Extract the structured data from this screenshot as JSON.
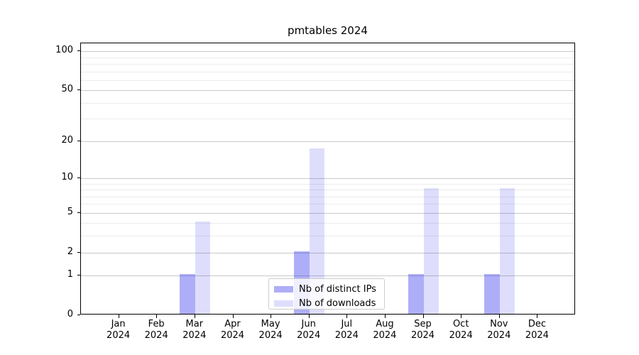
{
  "chart_data": {
    "type": "bar",
    "title": "pmtables 2024",
    "categories": [
      "Jan",
      "Feb",
      "Mar",
      "Apr",
      "May",
      "Jun",
      "Jul",
      "Aug",
      "Sep",
      "Oct",
      "Nov",
      "Dec"
    ],
    "year_label": "2024",
    "series": [
      {
        "name": "Nb of distinct IPs",
        "color": "rgba(10,10,235,0.33)",
        "values": [
          0,
          0,
          1,
          0,
          0,
          2,
          0,
          0,
          1,
          0,
          1,
          0
        ]
      },
      {
        "name": "Nb of downloads",
        "color": "rgba(10,10,235,0.135)",
        "values": [
          0,
          0,
          4,
          0,
          0,
          17,
          0,
          0,
          8,
          0,
          8,
          0
        ]
      }
    ],
    "yscale": "log1p",
    "yticks": [
      0,
      1,
      2,
      5,
      10,
      20,
      50,
      100
    ],
    "yminor_gridlines": [
      3,
      4,
      6,
      7,
      8,
      9,
      30,
      40,
      60,
      70,
      80,
      90
    ],
    "ylim": [
      0,
      115
    ],
    "xlabel": "",
    "ylabel": "",
    "grid": {
      "major_color": "#c9c9c9",
      "minor_color": "#ececec"
    },
    "legend_position": "lower center",
    "frame_color": "#000000",
    "background_color": "#ffffff"
  }
}
